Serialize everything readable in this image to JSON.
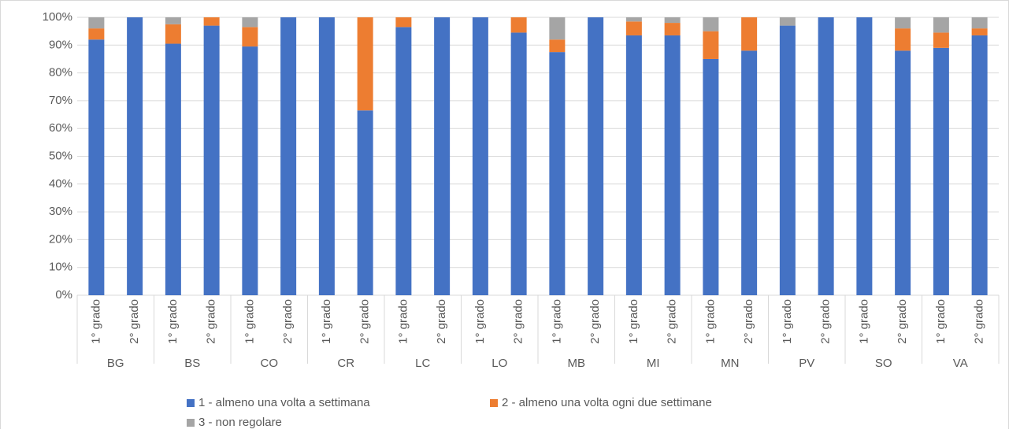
{
  "chart_data": {
    "type": "stacked_bar",
    "groups": [
      "BG",
      "BS",
      "CO",
      "CR",
      "LC",
      "LO",
      "MB",
      "MI",
      "MN",
      "PV",
      "SO",
      "VA"
    ],
    "categories": [
      "1° grado",
      "2° grado",
      "1° grado",
      "2° grado",
      "1° grado",
      "2° grado",
      "1° grado",
      "2° grado",
      "1° grado",
      "2° grado",
      "1° grado",
      "2° grado",
      "1° grado",
      "2° grado",
      "1° grado",
      "2° grado",
      "1° grado",
      "2° grado",
      "1° grado",
      "2° grado",
      "1° grado",
      "2° grado",
      "1° grado",
      "2° grado"
    ],
    "series": [
      {
        "name": "1 - almeno una volta a settimana",
        "color": "#4472c4",
        "values": [
          92,
          100,
          90.5,
          97,
          89.5,
          100,
          100,
          66.5,
          96.5,
          100,
          100,
          94.5,
          87.5,
          100,
          93.5,
          93.5,
          85,
          88,
          97,
          100,
          100,
          88,
          89,
          93.5
        ]
      },
      {
        "name": "2 - almeno una volta ogni due settimane",
        "color": "#ed7d31",
        "values": [
          4,
          0,
          7,
          3,
          7,
          0,
          0,
          33.5,
          3.5,
          0,
          0,
          5.5,
          4.5,
          0,
          5,
          4.5,
          10,
          12,
          0,
          0,
          0,
          8,
          5.5,
          2.5
        ]
      },
      {
        "name": "3 - non regolare",
        "color": "#a5a5a5",
        "values": [
          4,
          0,
          2.5,
          0,
          3.5,
          0,
          0,
          0,
          0,
          0,
          0,
          0,
          8,
          0,
          1.5,
          2,
          5,
          0,
          3,
          0,
          0,
          4,
          5.5,
          4
        ]
      }
    ],
    "ylim": [
      0,
      100
    ],
    "yticks": [
      {
        "value": 0,
        "label": "0%"
      },
      {
        "value": 10,
        "label": "10%"
      },
      {
        "value": 20,
        "label": "20%"
      },
      {
        "value": 30,
        "label": "30%"
      },
      {
        "value": 40,
        "label": "40%"
      },
      {
        "value": 50,
        "label": "50%"
      },
      {
        "value": 60,
        "label": "60%"
      },
      {
        "value": 70,
        "label": "70%"
      },
      {
        "value": 80,
        "label": "80%"
      },
      {
        "value": 90,
        "label": "90%"
      },
      {
        "value": 100,
        "label": "100%"
      }
    ],
    "grid": true,
    "legend": "bottom"
  }
}
